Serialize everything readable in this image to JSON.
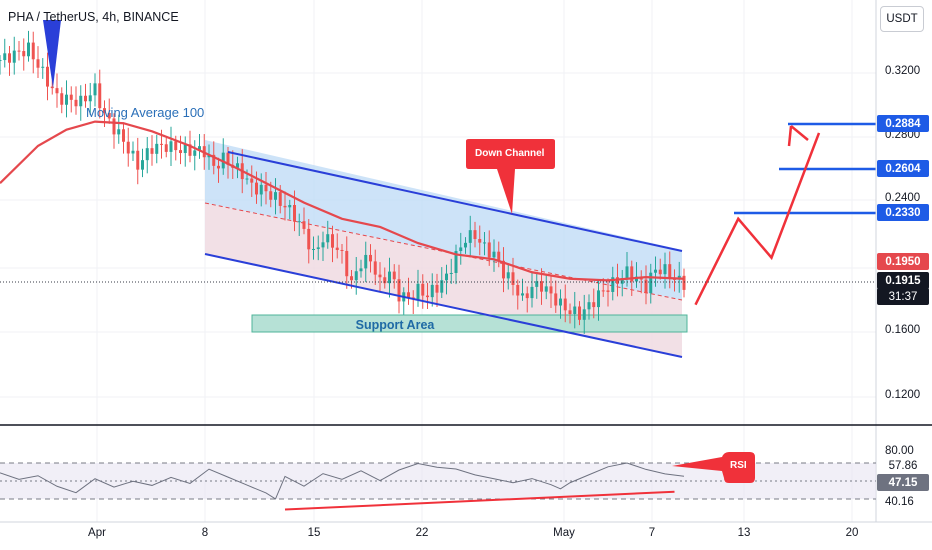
{
  "header": {
    "title": "PHA / TetherUS, 4h, BINANCE",
    "currency": "USDT"
  },
  "colors": {
    "bull": "#26a69a",
    "bear": "#ef5350",
    "ma": "#e5484d",
    "channel": "#2a3fd8",
    "target": "#1e5be6",
    "arrow": "#f0313a",
    "support": "#72c7b8",
    "rsi": "#6e7280"
  },
  "chart_data": [
    {
      "type": "candlestick",
      "ylabel": "",
      "ylim": [
        0.1,
        0.345
      ],
      "y_ticks": [
        "0.3200",
        "0.2800",
        "0.2400",
        "0.1600",
        "0.1200"
      ],
      "x_ticks": [
        "Apr",
        "8",
        "15",
        "22",
        "May",
        "7",
        "13",
        "20"
      ],
      "close_path": [
        [
          0,
          0.328
        ],
        [
          6,
          0.335
        ],
        [
          12,
          0.305
        ],
        [
          17,
          0.302
        ],
        [
          20,
          0.31
        ],
        [
          22,
          0.294
        ],
        [
          26,
          0.278
        ],
        [
          29,
          0.263
        ],
        [
          32,
          0.274
        ],
        [
          35,
          0.275
        ],
        [
          39,
          0.272
        ],
        [
          43,
          0.272
        ],
        [
          45,
          0.262
        ],
        [
          47,
          0.267
        ],
        [
          49,
          0.263
        ],
        [
          51,
          0.258
        ],
        [
          53,
          0.25
        ],
        [
          56,
          0.247
        ],
        [
          60,
          0.238
        ],
        [
          62,
          0.232
        ],
        [
          64,
          0.222
        ],
        [
          66,
          0.208
        ],
        [
          68,
          0.218
        ],
        [
          70,
          0.215
        ],
        [
          72,
          0.207
        ],
        [
          74,
          0.19
        ],
        [
          76,
          0.203
        ],
        [
          78,
          0.205
        ],
        [
          80,
          0.19
        ],
        [
          82,
          0.197
        ],
        [
          84,
          0.183
        ],
        [
          86,
          0.181
        ],
        [
          88,
          0.186
        ],
        [
          90,
          0.183
        ],
        [
          92,
          0.188
        ],
        [
          94,
          0.194
        ],
        [
          96,
          0.207
        ],
        [
          98,
          0.218
        ],
        [
          100,
          0.22
        ],
        [
          102,
          0.212
        ],
        [
          104,
          0.208
        ],
        [
          106,
          0.197
        ],
        [
          108,
          0.19
        ],
        [
          110,
          0.18
        ],
        [
          112,
          0.188
        ],
        [
          114,
          0.189
        ],
        [
          116,
          0.183
        ],
        [
          118,
          0.177
        ],
        [
          120,
          0.173
        ],
        [
          122,
          0.171
        ],
        [
          124,
          0.176
        ],
        [
          126,
          0.183
        ],
        [
          128,
          0.188
        ],
        [
          130,
          0.192
        ],
        [
          132,
          0.197
        ],
        [
          134,
          0.193
        ],
        [
          136,
          0.188
        ],
        [
          138,
          0.199
        ],
        [
          140,
          0.198
        ],
        [
          142,
          0.193
        ],
        [
          144,
          0.19
        ]
      ],
      "moving_average": {
        "name": "Moving Average 100",
        "path": [
          [
            0,
            0.252
          ],
          [
            8,
            0.275
          ],
          [
            14,
            0.285
          ],
          [
            20,
            0.29
          ],
          [
            26,
            0.289
          ],
          [
            32,
            0.284
          ],
          [
            40,
            0.275
          ],
          [
            48,
            0.264
          ],
          [
            56,
            0.252
          ],
          [
            64,
            0.24
          ],
          [
            72,
            0.23
          ],
          [
            80,
            0.225
          ],
          [
            88,
            0.215
          ],
          [
            96,
            0.208
          ],
          [
            104,
            0.205
          ],
          [
            112,
            0.197
          ],
          [
            120,
            0.193
          ],
          [
            128,
            0.192
          ],
          [
            136,
            0.194
          ],
          [
            144,
            0.193
          ]
        ]
      },
      "last_price": "0.1915",
      "countdown": "31:37",
      "ma_value": "0.1950",
      "targets": [
        {
          "label": "0.2884",
          "value": 0.2884
        },
        {
          "label": "0.2604",
          "value": 0.2604
        },
        {
          "label": "0.2330",
          "value": 0.233
        }
      ],
      "annotations": {
        "down_channel": "Down Channel",
        "support_area": "Support Area",
        "projected_path": [
          [
            146,
            0.177
          ],
          [
            155,
            0.23
          ],
          [
            162,
            0.206
          ],
          [
            172,
            0.283
          ]
        ]
      }
    },
    {
      "type": "line",
      "name": "RSI",
      "ylim": [
        35,
        85
      ],
      "levels": [
        "80.00",
        "57.86",
        "47.15",
        "40.16"
      ],
      "path": [
        [
          0,
          53
        ],
        [
          4,
          50
        ],
        [
          8,
          52
        ],
        [
          12,
          47
        ],
        [
          16,
          44
        ],
        [
          20,
          51
        ],
        [
          24,
          47
        ],
        [
          28,
          50
        ],
        [
          32,
          48
        ],
        [
          36,
          52
        ],
        [
          40,
          49
        ],
        [
          44,
          56
        ],
        [
          48,
          52
        ],
        [
          52,
          48
        ],
        [
          56,
          44
        ],
        [
          58,
          41
        ],
        [
          60,
          52
        ],
        [
          64,
          47
        ],
        [
          68,
          53
        ],
        [
          72,
          50
        ],
        [
          76,
          54
        ],
        [
          80,
          49
        ],
        [
          84,
          54
        ],
        [
          88,
          57
        ],
        [
          92,
          55
        ],
        [
          96,
          54
        ],
        [
          100,
          51
        ],
        [
          104,
          49
        ],
        [
          108,
          47
        ],
        [
          112,
          49
        ],
        [
          116,
          46
        ],
        [
          118,
          44
        ],
        [
          120,
          47
        ],
        [
          124,
          51
        ],
        [
          128,
          55
        ],
        [
          132,
          57
        ],
        [
          136,
          54
        ],
        [
          140,
          52
        ],
        [
          144,
          51
        ]
      ],
      "support_line": [
        [
          60,
          40.9
        ],
        [
          142,
          45.2
        ]
      ]
    }
  ]
}
